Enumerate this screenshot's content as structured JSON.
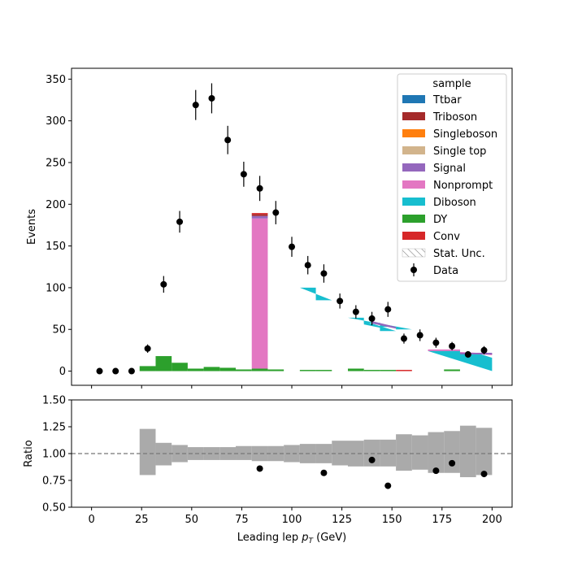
{
  "chart_data": [
    {
      "type": "bar",
      "panel": "main",
      "ylabel": "Events",
      "xlim": [
        -10,
        210
      ],
      "ylim": [
        -17,
        363
      ],
      "yticks": [
        0,
        50,
        100,
        150,
        200,
        250,
        300,
        350
      ],
      "legend": {
        "title": "sample",
        "placement": "top-right",
        "entries": [
          {
            "name": "Ttbar",
            "color": "#1f77b4",
            "kind": "patch"
          },
          {
            "name": "Triboson",
            "color": "#a52a2a",
            "kind": "patch"
          },
          {
            "name": "Singleboson",
            "color": "#ff7f0e",
            "kind": "patch"
          },
          {
            "name": "Single top",
            "color": "#d2b48c",
            "kind": "patch"
          },
          {
            "name": "Signal",
            "color": "#9467bd",
            "kind": "patch"
          },
          {
            "name": "Nonprompt",
            "color": "#e377c2",
            "kind": "patch"
          },
          {
            "name": "Diboson",
            "color": "#17becf",
            "kind": "patch"
          },
          {
            "name": "DY",
            "color": "#2ca02c",
            "kind": "patch"
          },
          {
            "name": "Conv",
            "color": "#d62728",
            "kind": "patch"
          },
          {
            "name": "Stat. Unc.",
            "color": "#999999",
            "kind": "hatch"
          },
          {
            "name": "Data",
            "color": "#000000",
            "kind": "errorbar"
          }
        ]
      },
      "bin_edges": [
        24,
        32,
        40,
        48,
        56,
        64,
        72,
        80,
        88,
        96,
        104,
        112,
        120,
        128,
        136,
        144,
        152,
        160,
        168,
        176,
        184,
        192,
        200
      ],
      "stack_segments": [
        {
          "bin": [
            24,
            32
          ],
          "name": "DY",
          "bottom": 0,
          "top": 6
        },
        {
          "bin": [
            32,
            40
          ],
          "name": "DY",
          "bottom": 0,
          "top": 18
        },
        {
          "bin": [
            40,
            48
          ],
          "name": "DY",
          "bottom": 0,
          "top": 10
        },
        {
          "bin": [
            48,
            56
          ],
          "name": "DY",
          "bottom": 0,
          "top": 3
        },
        {
          "bin": [
            56,
            64
          ],
          "name": "DY",
          "bottom": 0,
          "top": 5
        },
        {
          "bin": [
            64,
            72
          ],
          "name": "DY",
          "bottom": 0,
          "top": 4
        },
        {
          "bin": [
            72,
            80
          ],
          "name": "DY",
          "bottom": 0,
          "top": 2
        },
        {
          "bin": [
            80,
            88
          ],
          "name": "DY",
          "bottom": 0,
          "top": 3
        },
        {
          "bin": [
            80,
            88
          ],
          "name": "Nonprompt",
          "bottom": 3,
          "top": 183
        },
        {
          "bin": [
            80,
            88
          ],
          "name": "Signal",
          "bottom": 183,
          "top": 186
        },
        {
          "bin": [
            80,
            88
          ],
          "name": "Triboson",
          "bottom": 186,
          "top": 188
        },
        {
          "bin": [
            80,
            88
          ],
          "name": "Conv",
          "bottom": 188,
          "top": 189
        },
        {
          "bin": [
            88,
            96
          ],
          "name": "DY",
          "bottom": 0,
          "top": 2
        },
        {
          "bin": [
            104,
            112
          ],
          "name": "DY",
          "bottom": 0,
          "top": 1
        },
        {
          "bin": [
            112,
            120
          ],
          "name": "DY",
          "bottom": 0,
          "top": 1
        },
        {
          "bin": [
            128,
            136
          ],
          "name": "DY",
          "bottom": 0,
          "top": 3
        },
        {
          "bin": [
            136,
            144
          ],
          "name": "DY",
          "bottom": 0,
          "top": 1
        },
        {
          "bin": [
            144,
            152
          ],
          "name": "DY",
          "bottom": 0,
          "top": 1
        },
        {
          "bin": [
            152,
            160
          ],
          "name": "Conv",
          "bottom": 0,
          "top": 0.5
        },
        {
          "bin": [
            176,
            184
          ],
          "name": "DY",
          "bottom": 0,
          "top": 2
        }
      ],
      "polygons": [
        {
          "name": "Diboson",
          "points": [
            [
              104,
              100
            ],
            [
              112,
              100
            ],
            [
              112,
              85
            ],
            [
              120,
              85
            ]
          ]
        },
        {
          "name": "Diboson",
          "points": [
            [
              128,
              64
            ],
            [
              136,
              64
            ],
            [
              136,
              58
            ],
            [
              144,
              58
            ],
            [
              144,
              53
            ],
            [
              152,
              53
            ],
            [
              152,
              50
            ],
            [
              160,
              50
            ]
          ]
        },
        {
          "name": "Diboson",
          "points": [
            [
              136,
              56
            ],
            [
              144,
              52
            ],
            [
              144,
              48
            ],
            [
              152,
              48
            ],
            [
              136,
              60
            ]
          ]
        },
        {
          "name": "Signal",
          "points": [
            [
              140,
              60
            ],
            [
              152,
              53
            ],
            [
              152,
              51
            ],
            [
              140,
              57
            ]
          ]
        },
        {
          "name": "Diboson",
          "points": [
            [
              168,
              25
            ],
            [
              184,
              25
            ],
            [
              184,
              22
            ],
            [
              192,
              22
            ],
            [
              200,
              16
            ],
            [
              200,
              0
            ],
            [
              168,
              24
            ]
          ]
        },
        {
          "name": "Nonprompt",
          "points": [
            [
              168,
              26
            ],
            [
              184,
              26
            ],
            [
              184,
              23
            ],
            [
              200,
              21
            ],
            [
              200,
              19
            ],
            [
              184,
              22
            ],
            [
              184,
              24
            ],
            [
              168,
              24
            ]
          ]
        },
        {
          "name": "Signal",
          "points": [
            [
              184,
              22
            ],
            [
              200,
              22
            ],
            [
              200,
              20
            ],
            [
              184,
              20
            ]
          ]
        }
      ],
      "data_points": [
        {
          "x": 4,
          "y": 0,
          "err": 0
        },
        {
          "x": 12,
          "y": 0,
          "err": 0
        },
        {
          "x": 20,
          "y": 0,
          "err": 0
        },
        {
          "x": 28,
          "y": 27,
          "err": 5
        },
        {
          "x": 36,
          "y": 104,
          "err": 10
        },
        {
          "x": 44,
          "y": 179,
          "err": 13
        },
        {
          "x": 52,
          "y": 319,
          "err": 18
        },
        {
          "x": 60,
          "y": 327,
          "err": 18
        },
        {
          "x": 68,
          "y": 277,
          "err": 17
        },
        {
          "x": 76,
          "y": 236,
          "err": 15
        },
        {
          "x": 84,
          "y": 219,
          "err": 15
        },
        {
          "x": 92,
          "y": 190,
          "err": 14
        },
        {
          "x": 100,
          "y": 149,
          "err": 12
        },
        {
          "x": 108,
          "y": 127,
          "err": 11
        },
        {
          "x": 116,
          "y": 117,
          "err": 11
        },
        {
          "x": 124,
          "y": 84,
          "err": 9
        },
        {
          "x": 132,
          "y": 71,
          "err": 8
        },
        {
          "x": 140,
          "y": 63,
          "err": 8
        },
        {
          "x": 148,
          "y": 74,
          "err": 9
        },
        {
          "x": 156,
          "y": 39,
          "err": 6
        },
        {
          "x": 164,
          "y": 43,
          "err": 7
        },
        {
          "x": 172,
          "y": 34,
          "err": 6
        },
        {
          "x": 180,
          "y": 30,
          "err": 5
        },
        {
          "x": 188,
          "y": 20,
          "err": 4
        },
        {
          "x": 196,
          "y": 25,
          "err": 5
        }
      ]
    },
    {
      "type": "bar",
      "panel": "ratio",
      "xlabel": "Leading lep p_T (GeV)",
      "ylabel": "Ratio",
      "xlim": [
        -10,
        210
      ],
      "ylim": [
        0.5,
        1.5
      ],
      "xticks": [
        0,
        25,
        50,
        75,
        100,
        125,
        150,
        175,
        200
      ],
      "yticks": [
        "0.50",
        "0.75",
        "1.00",
        "1.25",
        "1.50"
      ],
      "reference_line": 1.0,
      "uncertainty_band": [
        {
          "bin": [
            24,
            32
          ],
          "low": 0.8,
          "high": 1.23
        },
        {
          "bin": [
            32,
            40
          ],
          "low": 0.89,
          "high": 1.1
        },
        {
          "bin": [
            40,
            48
          ],
          "low": 0.92,
          "high": 1.08
        },
        {
          "bin": [
            48,
            56
          ],
          "low": 0.94,
          "high": 1.06
        },
        {
          "bin": [
            56,
            64
          ],
          "low": 0.94,
          "high": 1.06
        },
        {
          "bin": [
            64,
            72
          ],
          "low": 0.94,
          "high": 1.06
        },
        {
          "bin": [
            72,
            80
          ],
          "low": 0.94,
          "high": 1.07
        },
        {
          "bin": [
            80,
            88
          ],
          "low": 0.93,
          "high": 1.07
        },
        {
          "bin": [
            88,
            96
          ],
          "low": 0.93,
          "high": 1.07
        },
        {
          "bin": [
            96,
            104
          ],
          "low": 0.92,
          "high": 1.08
        },
        {
          "bin": [
            104,
            112
          ],
          "low": 0.91,
          "high": 1.09
        },
        {
          "bin": [
            112,
            120
          ],
          "low": 0.91,
          "high": 1.09
        },
        {
          "bin": [
            120,
            128
          ],
          "low": 0.89,
          "high": 1.12
        },
        {
          "bin": [
            128,
            136
          ],
          "low": 0.88,
          "high": 1.12
        },
        {
          "bin": [
            136,
            144
          ],
          "low": 0.88,
          "high": 1.13
        },
        {
          "bin": [
            144,
            152
          ],
          "low": 0.88,
          "high": 1.13
        },
        {
          "bin": [
            152,
            160
          ],
          "low": 0.84,
          "high": 1.18
        },
        {
          "bin": [
            160,
            168
          ],
          "low": 0.85,
          "high": 1.17
        },
        {
          "bin": [
            168,
            176
          ],
          "low": 0.82,
          "high": 1.2
        },
        {
          "bin": [
            176,
            184
          ],
          "low": 0.82,
          "high": 1.21
        },
        {
          "bin": [
            184,
            192
          ],
          "low": 0.78,
          "high": 1.26
        },
        {
          "bin": [
            192,
            200
          ],
          "low": 0.8,
          "high": 1.24
        }
      ],
      "data_points": [
        {
          "x": 84,
          "y": 0.86
        },
        {
          "x": 116,
          "y": 0.82
        },
        {
          "x": 140,
          "y": 0.94
        },
        {
          "x": 148,
          "y": 0.7
        },
        {
          "x": 172,
          "y": 0.84
        },
        {
          "x": 180,
          "y": 0.91
        },
        {
          "x": 196,
          "y": 0.81
        }
      ]
    }
  ]
}
